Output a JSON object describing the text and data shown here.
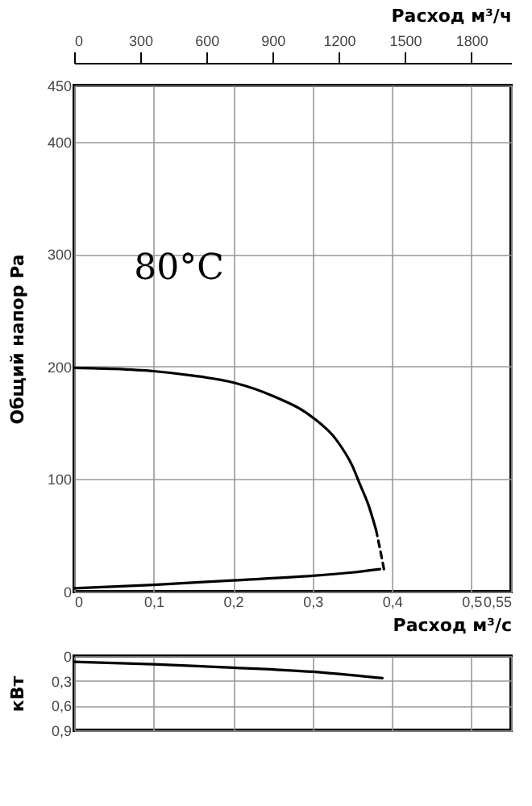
{
  "chart_data": [
    {
      "type": "line",
      "xlabel": "Расход м³/с",
      "ylabel": "Общий напор Pa",
      "x2label": "Расход м³/ч",
      "xlim": [
        0,
        0.55
      ],
      "xticks": [
        0,
        {
          "value": 0.1,
          "label": "0,1"
        },
        {
          "value": 0.2,
          "label": "0,2"
        },
        {
          "value": 0.3,
          "label": "0,3"
        },
        {
          "value": 0.4,
          "label": "0,4"
        },
        {
          "value": 0.5,
          "label": "0,5"
        },
        {
          "value": 0.55,
          "label": "0,55"
        }
      ],
      "x2lim": [
        0,
        1980
      ],
      "x2ticks": [
        0,
        300,
        600,
        900,
        1200,
        1500,
        1800
      ],
      "ylim": [
        0,
        450
      ],
      "yticks": [
        0,
        100,
        200,
        300,
        400,
        450
      ],
      "grid": true,
      "marker": "none",
      "annotations": [
        "80°C"
      ],
      "series": [
        {
          "color": "#000000",
          "line_style": "solid",
          "x": [
            0,
            0.05,
            0.1,
            0.15,
            0.2,
            0.25,
            0.3,
            0.33,
            0.35,
            0.36,
            0.37,
            0.38
          ],
          "values": [
            199,
            198,
            196,
            192,
            186,
            174,
            155,
            135,
            112,
            95,
            78,
            55
          ]
        },
        {
          "color": "#000000",
          "line_style": "dashed",
          "x": [
            0.38,
            0.385,
            0.39
          ],
          "values": [
            55,
            38,
            20
          ]
        },
        {
          "color": "#000000",
          "line_style": "solid",
          "x": [
            0,
            0.1,
            0.2,
            0.3,
            0.35,
            0.385
          ],
          "values": [
            3,
            6,
            10,
            14,
            17,
            20
          ]
        }
      ]
    },
    {
      "type": "line",
      "ylabel": "кВт",
      "xlim": [
        0,
        0.55
      ],
      "xticks": [
        0,
        0.1,
        0.2,
        0.3,
        0.4,
        0.5,
        0.55
      ],
      "tick_labels": "y",
      "ylim": [
        0.9,
        0
      ],
      "yticks": [
        0,
        {
          "value": 0.3,
          "label": "0,3"
        },
        {
          "value": 0.6,
          "label": "0,6"
        },
        {
          "value": 0.9,
          "label": "0,9"
        }
      ],
      "grid": true,
      "marker": "none",
      "series": [
        {
          "color": "#000000",
          "line_style": "solid",
          "x": [
            0,
            0.1,
            0.2,
            0.3,
            0.38
          ],
          "values": [
            0.07,
            0.1,
            0.14,
            0.19,
            0.26
          ]
        },
        {
          "color": "#000000",
          "line_style": "dashed",
          "x": [
            0.38,
            0.39
          ],
          "values": [
            0.26,
            0.27
          ]
        }
      ]
    }
  ]
}
